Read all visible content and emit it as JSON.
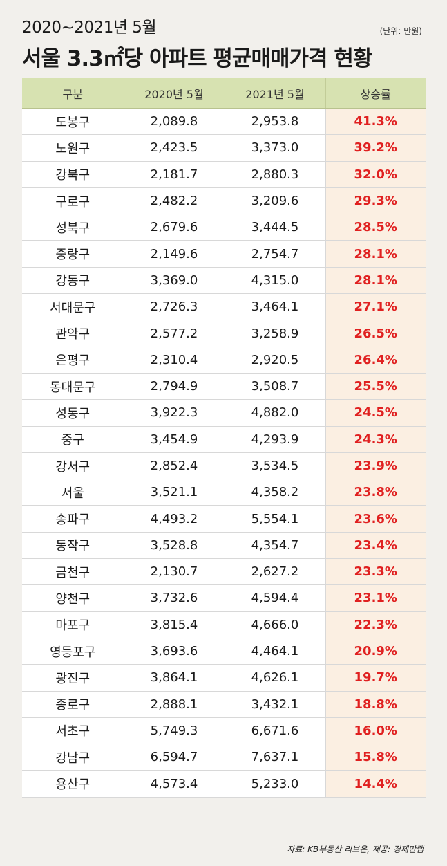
{
  "header": {
    "subtitle": "2020~2021년 5월",
    "title": "서울 3.3㎡당 아파트 평균매매가격 현황",
    "unit": "(단위: 만원)"
  },
  "footer": {
    "source": "자료: KB부동산 리브온, 제공: 경제만랩"
  },
  "colors": {
    "header_bg": "#d7e2b1",
    "rate_bg": "#fbefe2",
    "rate_text": "#e02020"
  },
  "chart_data": {
    "type": "table",
    "columns": [
      "구분",
      "2020년 5월",
      "2021년 5월",
      "상승률"
    ],
    "rows": [
      [
        "도봉구",
        "2,089.8",
        "2,953.8",
        "41.3%"
      ],
      [
        "노원구",
        "2,423.5",
        "3,373.0",
        "39.2%"
      ],
      [
        "강북구",
        "2,181.7",
        "2,880.3",
        "32.0%"
      ],
      [
        "구로구",
        "2,482.2",
        "3,209.6",
        "29.3%"
      ],
      [
        "성북구",
        "2,679.6",
        "3,444.5",
        "28.5%"
      ],
      [
        "중랑구",
        "2,149.6",
        "2,754.7",
        "28.1%"
      ],
      [
        "강동구",
        "3,369.0",
        "4,315.0",
        "28.1%"
      ],
      [
        "서대문구",
        "2,726.3",
        "3,464.1",
        "27.1%"
      ],
      [
        "관악구",
        "2,577.2",
        "3,258.9",
        "26.5%"
      ],
      [
        "은평구",
        "2,310.4",
        "2,920.5",
        "26.4%"
      ],
      [
        "동대문구",
        "2,794.9",
        "3,508.7",
        "25.5%"
      ],
      [
        "성동구",
        "3,922.3",
        "4,882.0",
        "24.5%"
      ],
      [
        "중구",
        "3,454.9",
        "4,293.9",
        "24.3%"
      ],
      [
        "강서구",
        "2,852.4",
        "3,534.5",
        "23.9%"
      ],
      [
        "서울",
        "3,521.1",
        "4,358.2",
        "23.8%"
      ],
      [
        "송파구",
        "4,493.2",
        "5,554.1",
        "23.6%"
      ],
      [
        "동작구",
        "3,528.8",
        "4,354.7",
        "23.4%"
      ],
      [
        "금천구",
        "2,130.7",
        "2,627.2",
        "23.3%"
      ],
      [
        "양천구",
        "3,732.6",
        "4,594.4",
        "23.1%"
      ],
      [
        "마포구",
        "3,815.4",
        "4,666.0",
        "22.3%"
      ],
      [
        "영등포구",
        "3,693.6",
        "4,464.1",
        "20.9%"
      ],
      [
        "광진구",
        "3,864.1",
        "4,626.1",
        "19.7%"
      ],
      [
        "종로구",
        "2,888.1",
        "3,432.1",
        "18.8%"
      ],
      [
        "서초구",
        "5,749.3",
        "6,671.6",
        "16.0%"
      ],
      [
        "강남구",
        "6,594.7",
        "7,637.1",
        "15.8%"
      ],
      [
        "용산구",
        "4,573.4",
        "5,233.0",
        "14.4%"
      ]
    ]
  }
}
